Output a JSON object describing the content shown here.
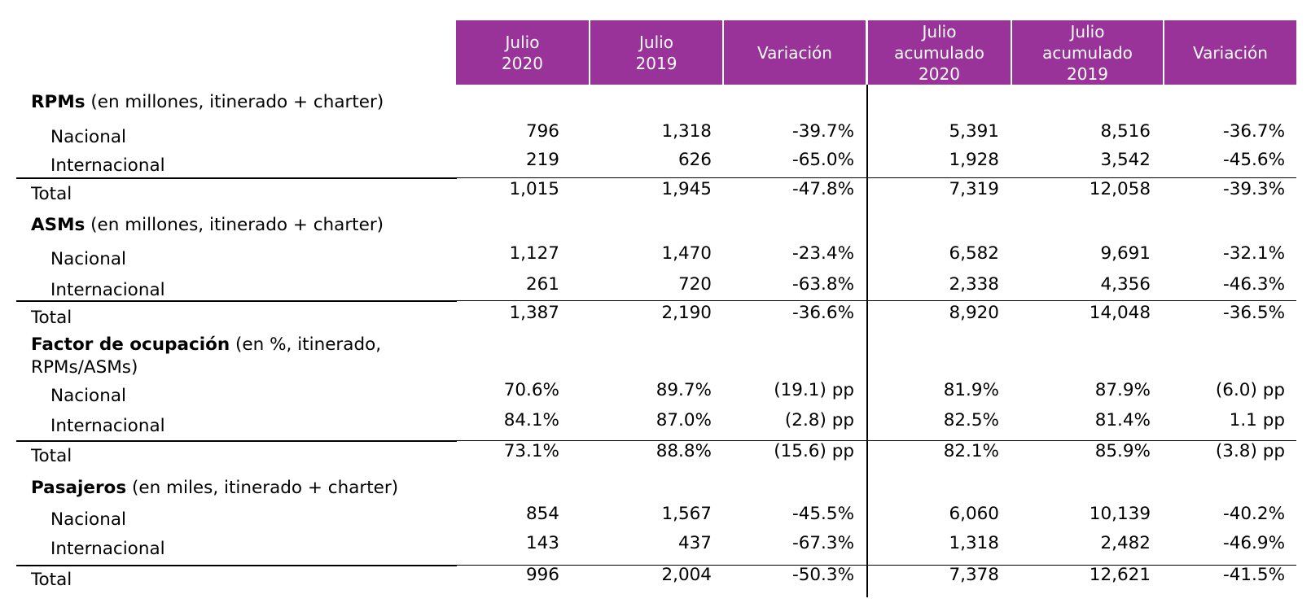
{
  "header": {
    "columns": [
      "Julio\n2020",
      "Julio\n2019",
      "Variación",
      "Julio\nacumulado\n2020",
      "Julio\nacumulado\n2019",
      "Variación"
    ]
  },
  "colors": {
    "header_bg": "#993399",
    "header_text": "#ffffff"
  },
  "sections": [
    {
      "title_bold": "RPMs",
      "title_rest": " (en millones, itinerado + charter)",
      "rows": [
        {
          "label": "Nacional",
          "values": [
            "796",
            "1,318",
            "-39.7%",
            "5,391",
            "8,516",
            "-36.7%"
          ]
        },
        {
          "label": "Internacional",
          "values": [
            "219",
            "626",
            "-65.0%",
            "1,928",
            "3,542",
            "-45.6%"
          ]
        }
      ],
      "total": {
        "label": "Total",
        "values": [
          "1,015",
          "1,945",
          "-47.8%",
          "7,319",
          "12,058",
          "-39.3%"
        ]
      }
    },
    {
      "title_bold": "ASMs",
      "title_rest": " (en millones, itinerado + charter)",
      "rows": [
        {
          "label": "Nacional",
          "values": [
            "1,127",
            "1,470",
            "-23.4%",
            "6,582",
            "9,691",
            "-32.1%"
          ]
        },
        {
          "label": "Internacional",
          "values": [
            "261",
            "720",
            "-63.8%",
            "2,338",
            "4,356",
            "-46.3%"
          ]
        }
      ],
      "total": {
        "label": "Total",
        "values": [
          "1,387",
          "2,190",
          "-36.6%",
          "8,920",
          "14,048",
          "-36.5%"
        ]
      }
    },
    {
      "title_bold": "Factor de ocupación",
      "title_rest": " (en %, itinerado, RPMs/ASMs)",
      "rows": [
        {
          "label": "Nacional",
          "values": [
            "70.6%",
            "89.7%",
            "(19.1) pp",
            "81.9%",
            "87.9%",
            "(6.0) pp"
          ]
        },
        {
          "label": "Internacional",
          "values": [
            "84.1%",
            "87.0%",
            "(2.8) pp",
            "82.5%",
            "81.4%",
            "1.1 pp"
          ]
        }
      ],
      "total": {
        "label": "Total",
        "values": [
          "73.1%",
          "88.8%",
          "(15.6) pp",
          "82.1%",
          "85.9%",
          "(3.8) pp"
        ]
      }
    },
    {
      "title_bold": "Pasajeros",
      "title_rest": " (en miles, itinerado + charter)",
      "rows": [
        {
          "label": "Nacional",
          "values": [
            "854",
            "1,567",
            "-45.5%",
            "6,060",
            "10,139",
            "-40.2%"
          ]
        },
        {
          "label": "Internacional",
          "values": [
            "143",
            "437",
            "-67.3%",
            "1,318",
            "2,482",
            "-46.9%"
          ]
        }
      ],
      "total": {
        "label": "Total",
        "values": [
          "996",
          "2,004",
          "-50.3%",
          "7,378",
          "12,621",
          "-41.5%"
        ]
      }
    }
  ]
}
